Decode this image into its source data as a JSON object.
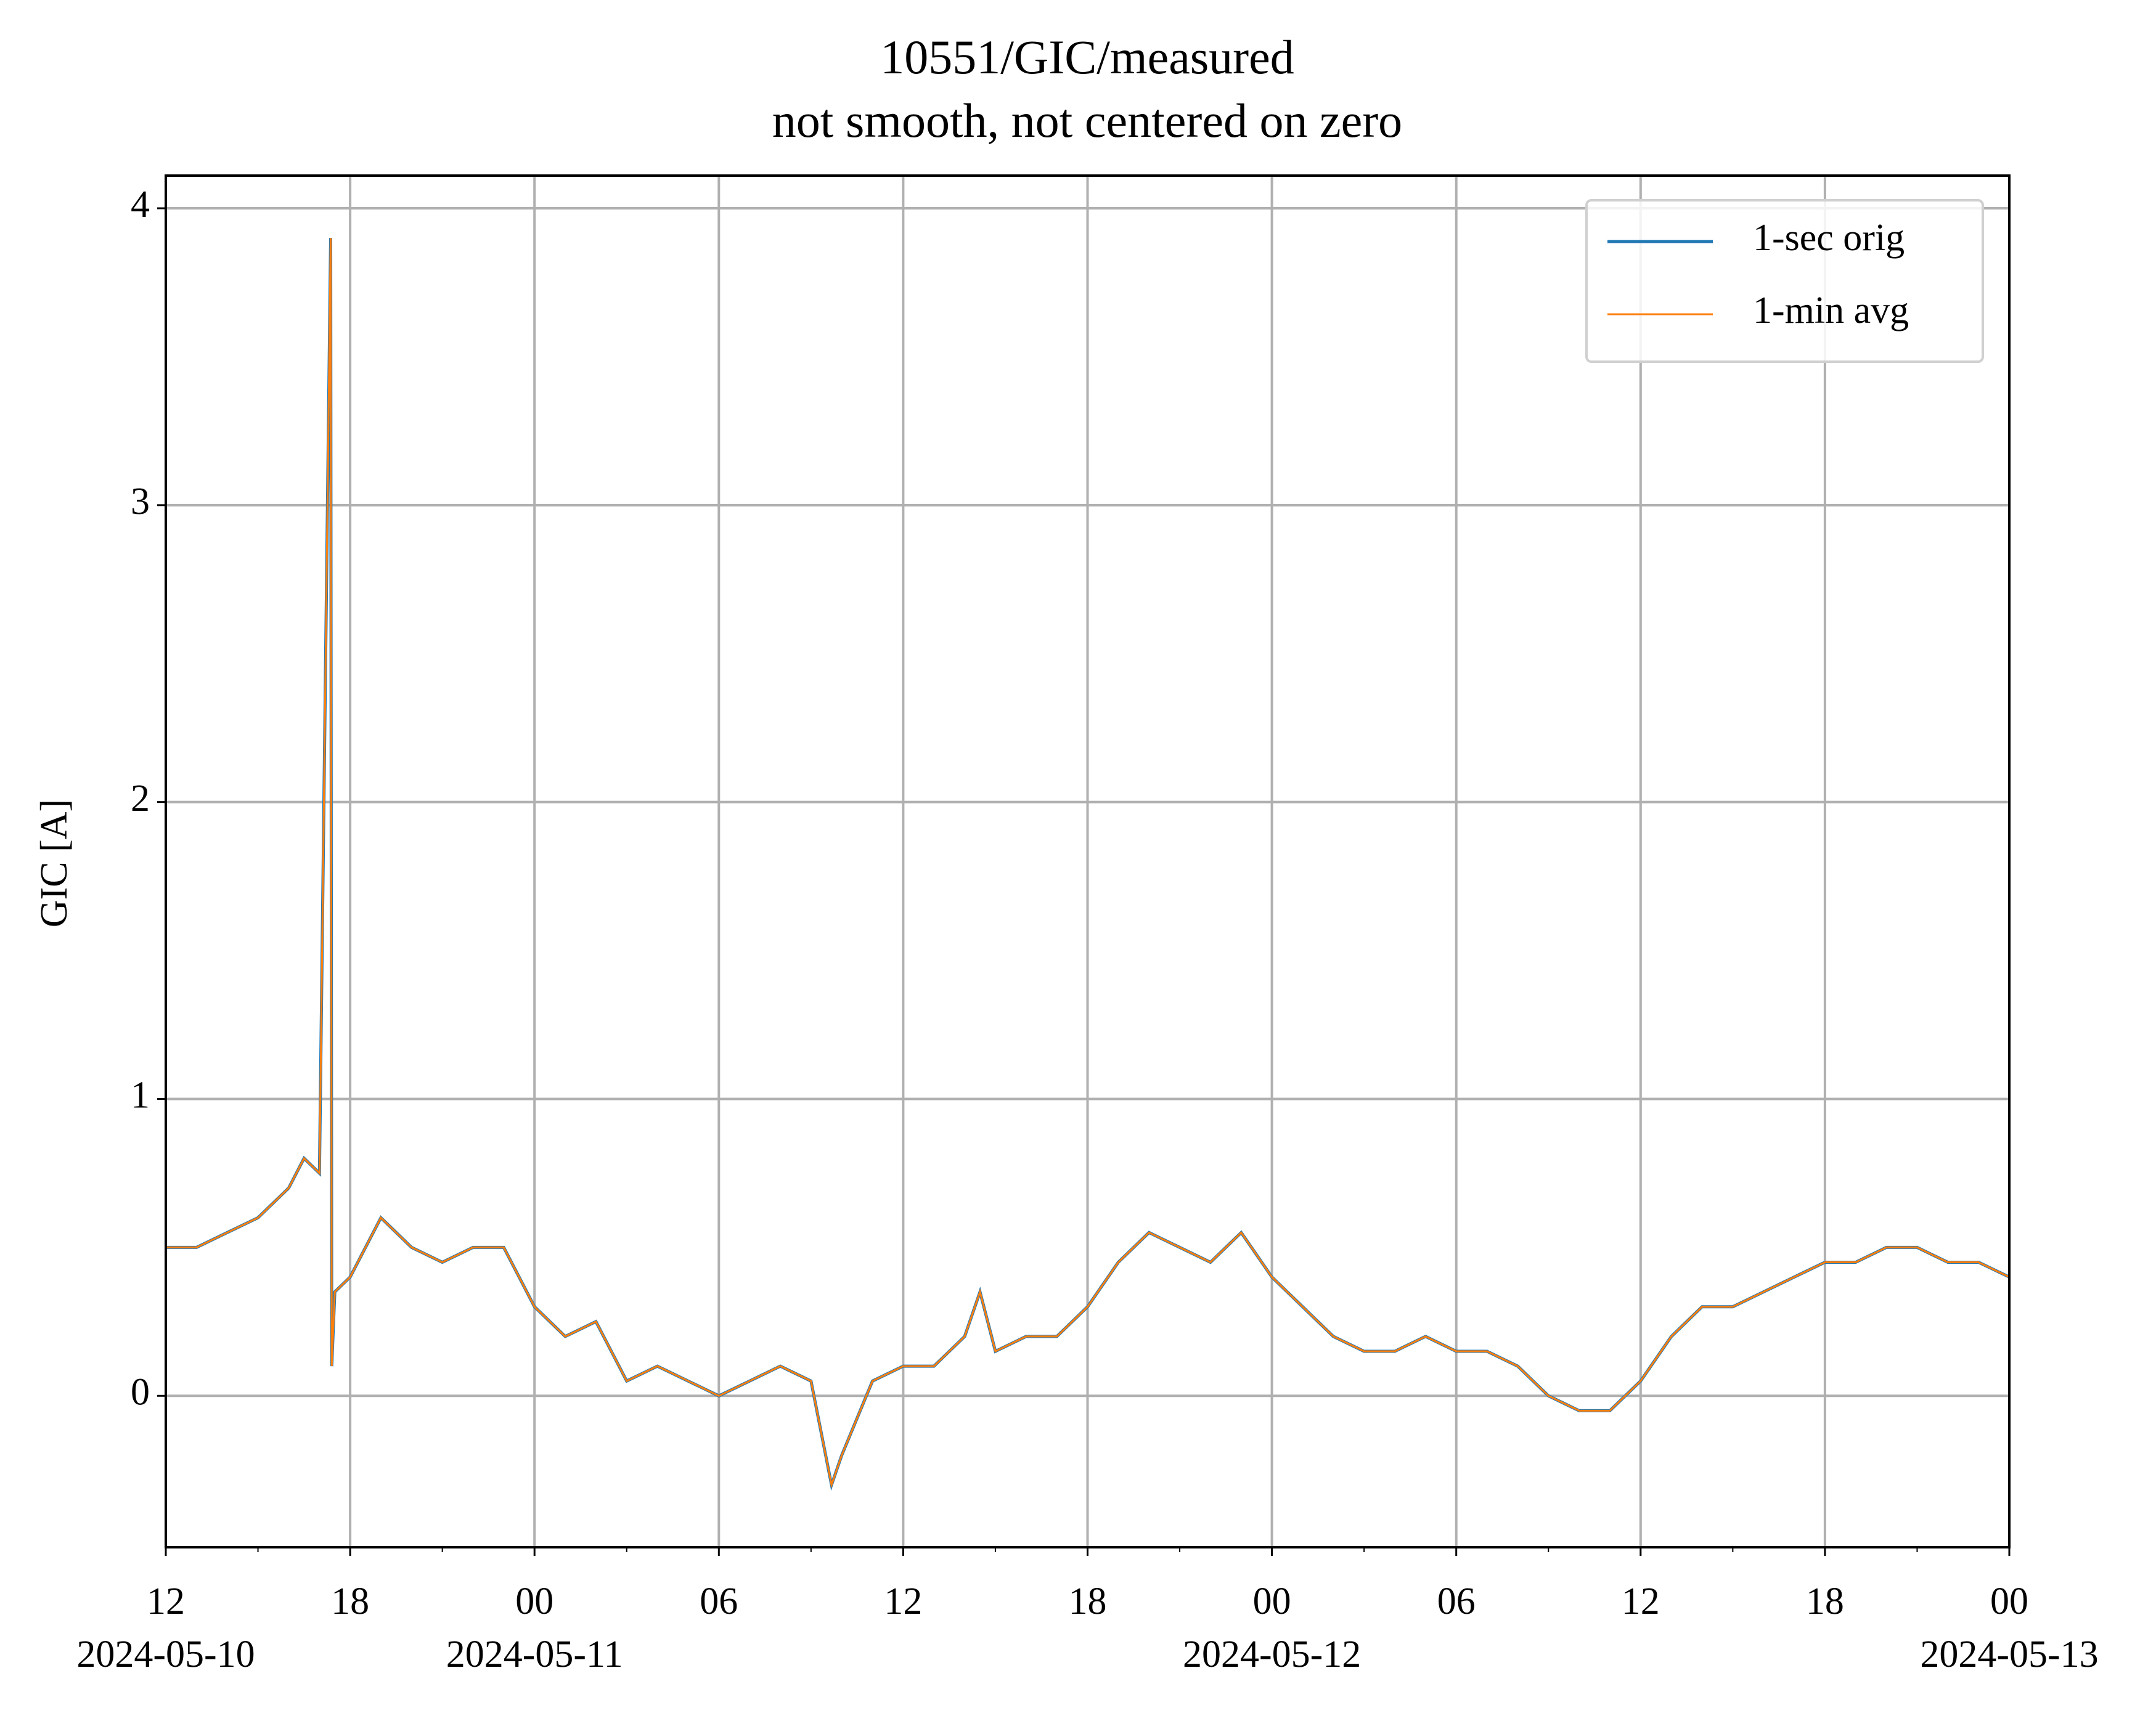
{
  "chart_data": {
    "type": "line",
    "title": "10551/GIC/measured",
    "subtitle": "not smooth, not centered on zero",
    "ylabel": "GIC [A]",
    "x": [
      "2024-05-10T12:00",
      "2024-05-10T13:00",
      "2024-05-10T14:00",
      "2024-05-10T15:00",
      "2024-05-10T16:00",
      "2024-05-10T16:30",
      "2024-05-10T17:00",
      "2024-05-10T17:22",
      "2024-05-10T17:24",
      "2024-05-10T17:30",
      "2024-05-10T18:00",
      "2024-05-10T19:00",
      "2024-05-10T20:00",
      "2024-05-10T21:00",
      "2024-05-10T22:00",
      "2024-05-10T23:00",
      "2024-05-11T00:00",
      "2024-05-11T01:00",
      "2024-05-11T02:00",
      "2024-05-11T03:00",
      "2024-05-11T04:00",
      "2024-05-11T05:00",
      "2024-05-11T06:00",
      "2024-05-11T07:00",
      "2024-05-11T08:00",
      "2024-05-11T09:00",
      "2024-05-11T09:40",
      "2024-05-11T10:00",
      "2024-05-11T11:00",
      "2024-05-11T12:00",
      "2024-05-11T13:00",
      "2024-05-11T14:00",
      "2024-05-11T14:30",
      "2024-05-11T15:00",
      "2024-05-11T16:00",
      "2024-05-11T17:00",
      "2024-05-11T18:00",
      "2024-05-11T19:00",
      "2024-05-11T20:00",
      "2024-05-11T21:00",
      "2024-05-11T22:00",
      "2024-05-11T23:00",
      "2024-05-12T00:00",
      "2024-05-12T01:00",
      "2024-05-12T02:00",
      "2024-05-12T03:00",
      "2024-05-12T04:00",
      "2024-05-12T05:00",
      "2024-05-12T06:00",
      "2024-05-12T07:00",
      "2024-05-12T08:00",
      "2024-05-12T09:00",
      "2024-05-12T10:00",
      "2024-05-12T11:00",
      "2024-05-12T12:00",
      "2024-05-12T13:00",
      "2024-05-12T14:00",
      "2024-05-12T15:00",
      "2024-05-12T16:00",
      "2024-05-12T17:00",
      "2024-05-12T18:00",
      "2024-05-12T19:00",
      "2024-05-12T20:00",
      "2024-05-12T21:00",
      "2024-05-12T22:00",
      "2024-05-12T23:00",
      "2024-05-13T00:00"
    ],
    "series": [
      {
        "name": "1-sec orig",
        "color": "#1f77b4",
        "values": [
          0.5,
          0.5,
          0.55,
          0.6,
          0.7,
          0.8,
          0.75,
          3.9,
          0.1,
          0.35,
          0.4,
          0.6,
          0.5,
          0.45,
          0.5,
          0.5,
          0.3,
          0.2,
          0.25,
          0.05,
          0.1,
          0.05,
          0.0,
          0.05,
          0.1,
          0.05,
          -0.3,
          -0.2,
          0.05,
          0.1,
          0.1,
          0.2,
          0.35,
          0.15,
          0.2,
          0.2,
          0.3,
          0.45,
          0.55,
          0.5,
          0.45,
          0.55,
          0.4,
          0.3,
          0.2,
          0.15,
          0.15,
          0.2,
          0.15,
          0.15,
          0.1,
          0.0,
          -0.05,
          -0.05,
          0.05,
          0.2,
          0.3,
          0.3,
          0.35,
          0.4,
          0.45,
          0.45,
          0.5,
          0.5,
          0.45,
          0.45,
          0.4
        ]
      },
      {
        "name": "1-min avg",
        "color": "#ff7f0e",
        "values": [
          0.5,
          0.5,
          0.55,
          0.6,
          0.7,
          0.8,
          0.75,
          3.9,
          0.1,
          0.35,
          0.4,
          0.6,
          0.5,
          0.45,
          0.5,
          0.5,
          0.3,
          0.2,
          0.25,
          0.05,
          0.1,
          0.05,
          0.0,
          0.05,
          0.1,
          0.05,
          -0.3,
          -0.2,
          0.05,
          0.1,
          0.1,
          0.2,
          0.35,
          0.15,
          0.2,
          0.2,
          0.3,
          0.45,
          0.55,
          0.5,
          0.45,
          0.55,
          0.4,
          0.3,
          0.2,
          0.15,
          0.15,
          0.2,
          0.15,
          0.15,
          0.1,
          0.0,
          -0.05,
          -0.05,
          0.05,
          0.2,
          0.3,
          0.3,
          0.35,
          0.4,
          0.45,
          0.45,
          0.5,
          0.5,
          0.45,
          0.45,
          0.4
        ]
      }
    ],
    "xlim": [
      "2024-05-10T12:00",
      "2024-05-13T00:00"
    ],
    "xticks": [
      {
        "value": "2024-05-10T12:00",
        "label": "12",
        "date": "2024-05-10"
      },
      {
        "value": "2024-05-10T18:00",
        "label": "18"
      },
      {
        "value": "2024-05-11T00:00",
        "label": "00",
        "date": "2024-05-11"
      },
      {
        "value": "2024-05-11T06:00",
        "label": "06"
      },
      {
        "value": "2024-05-11T12:00",
        "label": "12"
      },
      {
        "value": "2024-05-11T18:00",
        "label": "18"
      },
      {
        "value": "2024-05-12T00:00",
        "label": "00",
        "date": "2024-05-12"
      },
      {
        "value": "2024-05-12T06:00",
        "label": "06"
      },
      {
        "value": "2024-05-12T12:00",
        "label": "12"
      },
      {
        "value": "2024-05-12T18:00",
        "label": "18"
      },
      {
        "value": "2024-05-13T00:00",
        "label": "00",
        "date": "2024-05-13"
      }
    ],
    "xminorticks": [
      "2024-05-10T15:00",
      "2024-05-10T21:00",
      "2024-05-11T03:00",
      "2024-05-11T09:00",
      "2024-05-11T15:00",
      "2024-05-11T21:00",
      "2024-05-12T03:00",
      "2024-05-12T09:00",
      "2024-05-12T15:00",
      "2024-05-12T21:00"
    ],
    "ylim": [
      -0.51,
      4.11
    ],
    "yticks": [
      0,
      1,
      2,
      3,
      4
    ],
    "grid": true,
    "legend": "upper right"
  }
}
